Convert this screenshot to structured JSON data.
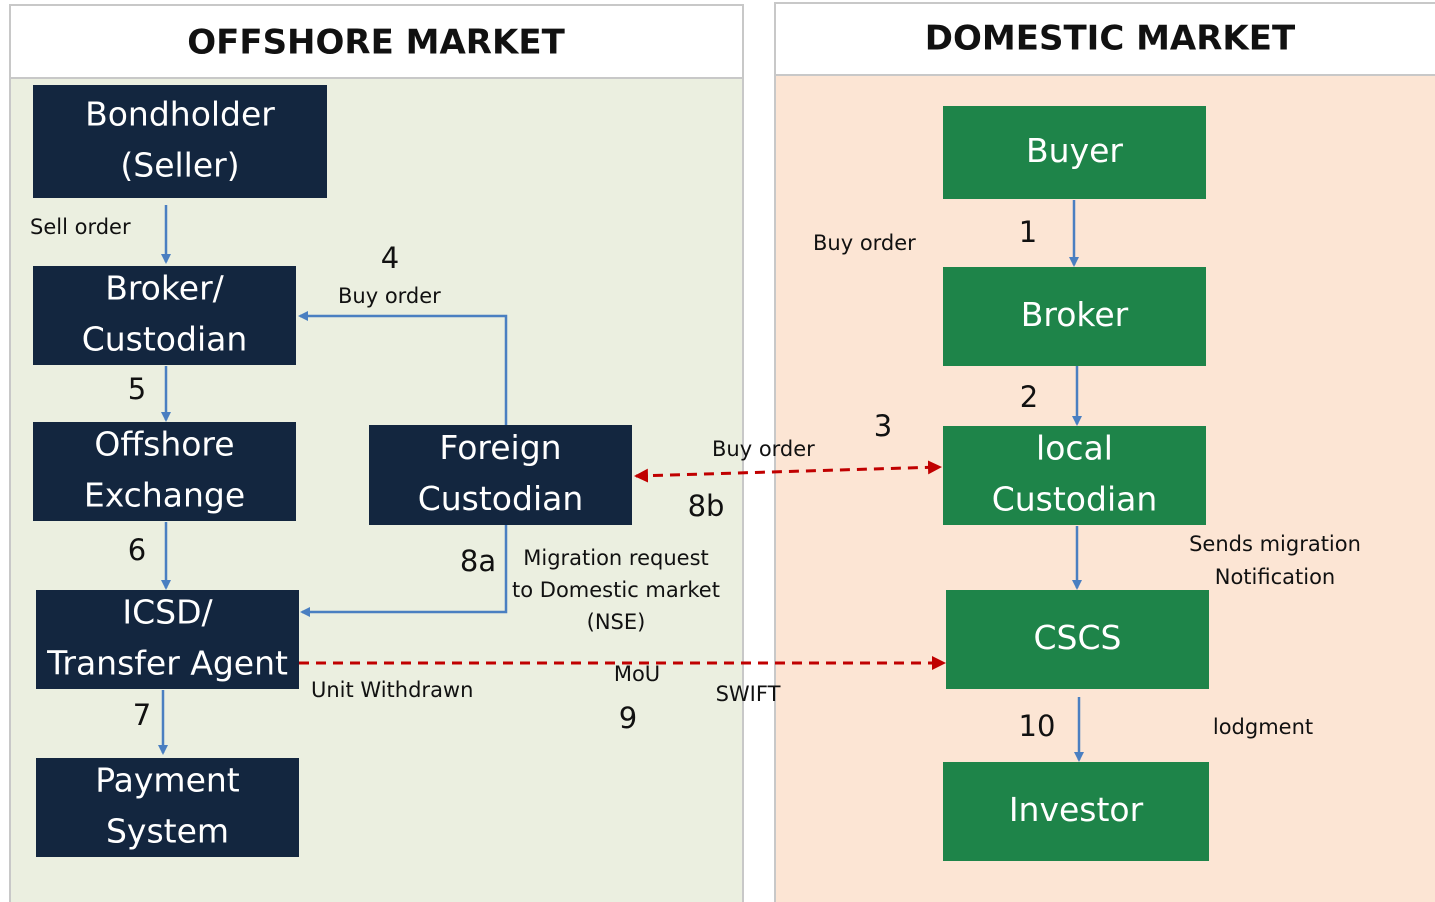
{
  "panels": [
    {
      "title": "OFFSHORE MARKET"
    },
    {
      "title": "DOMESTIC MARKET"
    }
  ],
  "nodes": [
    {
      "lines": [
        "Bondholder",
        "(Seller)"
      ]
    },
    {
      "lines": [
        "Broker/",
        "Custodian"
      ]
    },
    {
      "lines": [
        "Offshore",
        "Exchange"
      ]
    },
    {
      "lines": [
        "Foreign",
        "Custodian"
      ]
    },
    {
      "lines": [
        "ICSD/",
        "Transfer Agent"
      ]
    },
    {
      "lines": [
        "Payment",
        "System"
      ]
    },
    {
      "lines": [
        "Buyer"
      ]
    },
    {
      "lines": [
        "Broker"
      ]
    },
    {
      "lines": [
        "local",
        "Custodian"
      ]
    },
    {
      "lines": [
        "CSCS"
      ]
    },
    {
      "lines": [
        "Investor"
      ]
    }
  ],
  "labels": [
    {
      "lines": [
        "Sell order"
      ]
    },
    {
      "lines": [
        "4"
      ]
    },
    {
      "lines": [
        "Buy order"
      ]
    },
    {
      "lines": [
        "5"
      ]
    },
    {
      "lines": [
        "6"
      ]
    },
    {
      "lines": [
        "7"
      ]
    },
    {
      "lines": [
        "8a"
      ]
    },
    {
      "lines": [
        "Migration request",
        "to Domestic market",
        "(NSE)"
      ]
    },
    {
      "lines": [
        "Buy order"
      ]
    },
    {
      "lines": [
        "3"
      ]
    },
    {
      "lines": [
        "8b"
      ]
    },
    {
      "lines": [
        "Unit Withdrawn"
      ]
    },
    {
      "lines": [
        "MoU"
      ]
    },
    {
      "lines": [
        "SWIFT"
      ]
    },
    {
      "lines": [
        "9"
      ]
    },
    {
      "lines": [
        "Buy order"
      ]
    },
    {
      "lines": [
        "1"
      ]
    },
    {
      "lines": [
        "2"
      ]
    },
    {
      "lines": [
        "Sends migration",
        "Notification"
      ]
    },
    {
      "lines": [
        "10"
      ]
    },
    {
      "lines": [
        "lodgment"
      ]
    }
  ]
}
